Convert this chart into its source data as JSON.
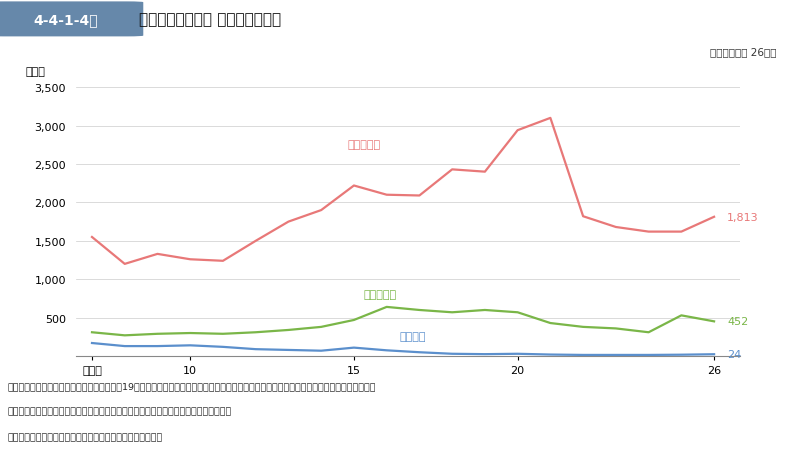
{
  "title": "大麻取締法違反等 検挙人員の推移",
  "header_label": "4-4-1-4図",
  "subtitle": "（平成７年～ 26年）",
  "ylabel": "（人）",
  "years": [
    7,
    8,
    9,
    10,
    11,
    12,
    13,
    14,
    15,
    16,
    17,
    18,
    19,
    20,
    21,
    22,
    23,
    24,
    25,
    26
  ],
  "taiima": [
    1550,
    1200,
    1330,
    1260,
    1240,
    1500,
    1750,
    1900,
    2220,
    2100,
    2090,
    2430,
    2400,
    2940,
    3100,
    1820,
    1680,
    1620,
    1620,
    1813
  ],
  "mayaku": [
    310,
    270,
    290,
    300,
    290,
    310,
    340,
    380,
    470,
    640,
    600,
    570,
    600,
    570,
    430,
    380,
    360,
    310,
    530,
    452
  ],
  "ahen": [
    170,
    130,
    130,
    140,
    120,
    90,
    80,
    70,
    110,
    75,
    50,
    30,
    25,
    30,
    20,
    15,
    15,
    15,
    18,
    24
  ],
  "taiima_color": "#e87878",
  "mayaku_color": "#7ab648",
  "ahen_color": "#5b8fcc",
  "taiima_label": "大麻取締法",
  "mayaku_label": "麻薬取締法",
  "ahen_label": "あへん法",
  "ylim": [
    0,
    3500
  ],
  "yticks": [
    0,
    500,
    1000,
    1500,
    2000,
    2500,
    3000,
    3500
  ],
  "xtick_vals": [
    7,
    10,
    15,
    20,
    26
  ],
  "xtick_labels": [
    "平成７",
    "10",
    "15",
    "20",
    "26"
  ],
  "notes": [
    "注　１　内閣府の資料による。ただし，平成19年までは，厚生労働省医薬食品局，警察庁刑事局及び海上保安庁警備救難部の各資料による。",
    "　　２　大麻，麻薬・向精神薬及びあへんに係る各麻薬特例法違反の検挙人員を含む。",
    "　　３　警察のほか，特別司法警察員が検挙した者を含む。"
  ],
  "header_bg": "#6688aa",
  "header_text_color": "#ffffff",
  "bg_color": "#ffffff"
}
